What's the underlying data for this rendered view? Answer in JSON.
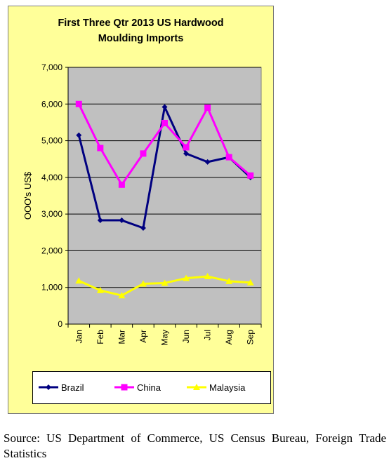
{
  "chart_data": {
    "type": "line",
    "title_lines": [
      "First Three Qtr 2013 US Hardwood",
      "Moulding  Imports"
    ],
    "ylabel": "OOO's US$",
    "xlabel": "",
    "categories": [
      "Jan",
      "Feb",
      "Mar",
      "Apr",
      "May",
      "Jun",
      "Jul",
      "Aug",
      "Sep"
    ],
    "ylim": [
      0,
      7000
    ],
    "yticks": [
      0,
      1000,
      2000,
      3000,
      4000,
      5000,
      6000,
      7000
    ],
    "ytick_labels": [
      "0",
      "1,000",
      "2,000",
      "3,000",
      "4,000",
      "5,000",
      "6,000",
      "7,000"
    ],
    "grid": true,
    "legend_position": "bottom",
    "plot_background": "#c0c0c0",
    "series": [
      {
        "name": "Brazil",
        "color": "#000080",
        "marker": "diamond",
        "values": [
          5150,
          2830,
          2830,
          2620,
          5920,
          4650,
          4420,
          4550,
          4000
        ]
      },
      {
        "name": "China",
        "color": "#ff00ff",
        "marker": "square",
        "values": [
          6000,
          4800,
          3800,
          4650,
          5480,
          4820,
          5900,
          4550,
          4050
        ]
      },
      {
        "name": "Malaysia",
        "color": "#ffff00",
        "marker": "triangle",
        "values": [
          1180,
          920,
          780,
          1100,
          1120,
          1250,
          1300,
          1170,
          1130
        ]
      }
    ]
  },
  "source_text": "Source: US Department of Commerce, US Census Bureau, Foreign Trade Statistics"
}
